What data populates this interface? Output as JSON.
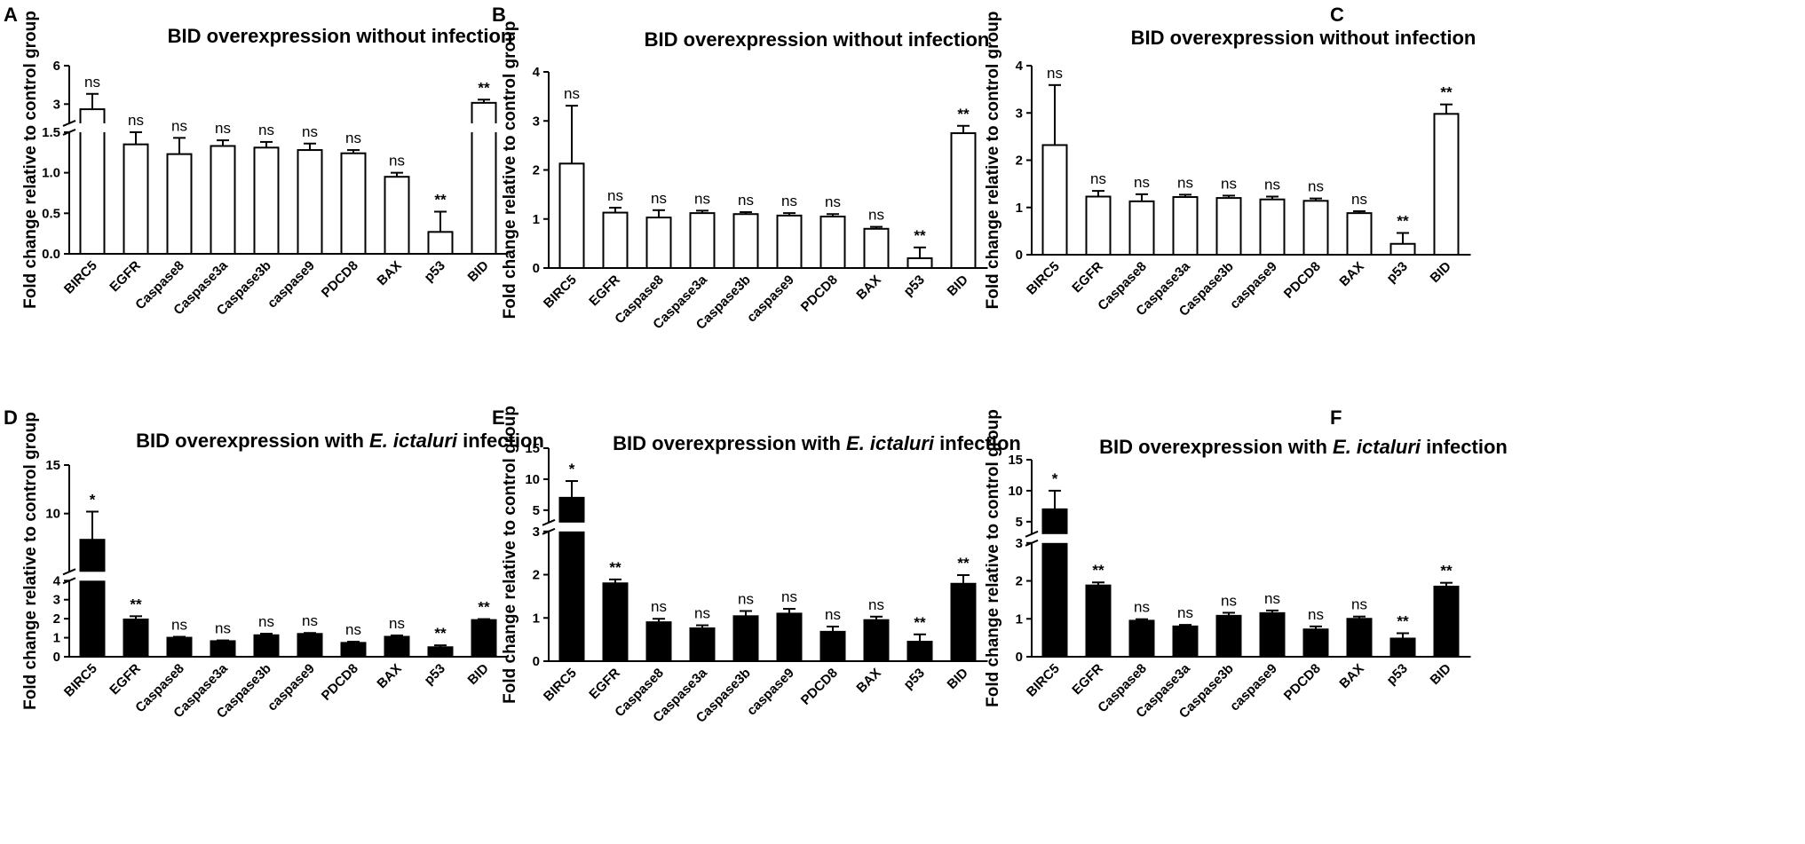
{
  "figure": {
    "label": "BID overexpression qPCR fold-change panels"
  },
  "colors": {
    "axis": "#000000",
    "bar_fill_open": "#ffffff",
    "bar_fill_solid": "#000000",
    "background": "#ffffff"
  },
  "chart_data": [
    {
      "panel": "A",
      "type": "bar",
      "title_main": "BID overexpression without infection",
      "title_italic": "",
      "title_tail": "",
      "ylabel": "Fold change relative to control group",
      "categories": [
        "BIRC5",
        "EGFR",
        "Caspase8",
        "Caspase3a",
        "Caspase3b",
        "caspase9",
        "PDCD8",
        "BAX",
        "p53",
        "BID"
      ],
      "values": [
        2.6,
        1.35,
        1.23,
        1.33,
        1.31,
        1.28,
        1.24,
        0.95,
        0.27,
        3.1
      ],
      "errors": [
        1.2,
        0.15,
        0.2,
        0.07,
        0.07,
        0.08,
        0.04,
        0.05,
        0.25,
        0.25
      ],
      "significance": [
        "ns",
        "ns",
        "ns",
        "ns",
        "ns",
        "ns",
        "ns",
        "ns",
        "**",
        "**"
      ],
      "bar_style": "open",
      "y_break": true,
      "ylim_lower": [
        0,
        1.5
      ],
      "ylim_upper": [
        1.5,
        6
      ],
      "yticks_lower": [
        "0.0",
        "0.5",
        "1.0",
        "1.5"
      ],
      "yticks_lower_values": [
        0,
        0.5,
        1.0,
        1.5
      ],
      "yticks_upper": [
        "3",
        "6"
      ],
      "yticks_upper_values": [
        3,
        6
      ]
    },
    {
      "panel": "B",
      "type": "bar",
      "title_main": "BID overexpression without infection",
      "title_italic": "",
      "title_tail": "",
      "ylabel": "Fold change relative to control group",
      "categories": [
        "BIRC5",
        "EGFR",
        "Caspase8",
        "Caspase3a",
        "Caspase3b",
        "caspase9",
        "PDCD8",
        "BAX",
        "p53",
        "BID"
      ],
      "values": [
        2.13,
        1.13,
        1.03,
        1.12,
        1.1,
        1.07,
        1.05,
        0.8,
        0.2,
        2.75
      ],
      "errors": [
        1.18,
        0.1,
        0.15,
        0.05,
        0.04,
        0.05,
        0.05,
        0.04,
        0.22,
        0.15
      ],
      "significance": [
        "ns",
        "ns",
        "ns",
        "ns",
        "ns",
        "ns",
        "ns",
        "ns",
        "**",
        "**"
      ],
      "bar_style": "open",
      "y_break": false,
      "ylim": [
        0,
        4
      ],
      "yticks": [
        "0",
        "1",
        "2",
        "3",
        "4"
      ],
      "yticks_values": [
        0,
        1,
        2,
        3,
        4
      ]
    },
    {
      "panel": "C",
      "type": "bar",
      "title_main": "BID overexpression without infection",
      "title_italic": "",
      "title_tail": "",
      "ylabel": "Fold change relative to control group",
      "categories": [
        "BIRC5",
        "EGFR",
        "Caspase8",
        "Caspase3a",
        "Caspase3b",
        "caspase9",
        "PDCD8",
        "BAX",
        "p53",
        "BID"
      ],
      "values": [
        2.32,
        1.23,
        1.13,
        1.22,
        1.2,
        1.17,
        1.14,
        0.88,
        0.23,
        2.98
      ],
      "errors": [
        1.27,
        0.12,
        0.15,
        0.05,
        0.05,
        0.06,
        0.05,
        0.04,
        0.23,
        0.2
      ],
      "significance": [
        "ns",
        "ns",
        "ns",
        "ns",
        "ns",
        "ns",
        "ns",
        "ns",
        "**",
        "**"
      ],
      "bar_style": "open",
      "y_break": false,
      "ylim": [
        0,
        4
      ],
      "yticks": [
        "0",
        "1",
        "2",
        "3",
        "4"
      ],
      "yticks_values": [
        0,
        1,
        2,
        3,
        4
      ]
    },
    {
      "panel": "D",
      "type": "bar",
      "title_main": "BID overexpression with ",
      "title_italic": "E. ictaluri",
      "title_tail": " infection",
      "ylabel": "Fold change relative to control group",
      "categories": [
        "BIRC5",
        "EGFR",
        "Caspase8",
        "Caspase3a",
        "Caspase3b",
        "caspase9",
        "PDCD8",
        "BAX",
        "p53",
        "BID"
      ],
      "values": [
        7.3,
        1.96,
        1.0,
        0.82,
        1.13,
        1.2,
        0.73,
        1.05,
        0.5,
        1.93
      ],
      "errors": [
        2.9,
        0.17,
        0.05,
        0.04,
        0.08,
        0.05,
        0.06,
        0.07,
        0.1,
        0.05
      ],
      "significance": [
        "*",
        "**",
        "ns",
        "ns",
        "ns",
        "ns",
        "ns",
        "ns",
        "**",
        "**"
      ],
      "bar_style": "solid",
      "y_break": true,
      "ylim_lower": [
        0,
        4
      ],
      "ylim_upper": [
        4,
        15
      ],
      "yticks_lower": [
        "0",
        "1",
        "2",
        "3",
        "4"
      ],
      "yticks_lower_values": [
        0,
        1,
        2,
        3,
        4
      ],
      "yticks_upper": [
        "10",
        "15"
      ],
      "yticks_upper_values": [
        10,
        15
      ]
    },
    {
      "panel": "E",
      "type": "bar",
      "title_main": "BID overexpression with ",
      "title_italic": "E. ictaluri",
      "title_tail": " infection",
      "ylabel": "Fold change relative to control group",
      "categories": [
        "BIRC5",
        "EGFR",
        "Caspase8",
        "Caspase3a",
        "Caspase3b",
        "caspase9",
        "PDCD8",
        "BAX",
        "p53",
        "BID"
      ],
      "values": [
        7.0,
        1.8,
        0.9,
        0.76,
        1.04,
        1.1,
        0.68,
        0.95,
        0.45,
        1.79
      ],
      "errors": [
        2.7,
        0.09,
        0.08,
        0.07,
        0.12,
        0.11,
        0.12,
        0.08,
        0.17,
        0.2
      ],
      "significance": [
        "*",
        "**",
        "ns",
        "ns",
        "ns",
        "ns",
        "ns",
        "ns",
        "**",
        "**"
      ],
      "bar_style": "solid",
      "y_break": true,
      "ylim_lower": [
        0,
        3
      ],
      "ylim_upper": [
        3,
        15
      ],
      "yticks_lower": [
        "0",
        "1",
        "2",
        "3"
      ],
      "yticks_lower_values": [
        0,
        1,
        2,
        3
      ],
      "yticks_upper": [
        "5",
        "10",
        "15"
      ],
      "yticks_upper_values": [
        5,
        10,
        15
      ]
    },
    {
      "panel": "F",
      "type": "bar",
      "title_main": "BID overexpression with ",
      "title_italic": "E. ictaluri",
      "title_tail": " infection",
      "ylabel": "Fold change relative to control group",
      "categories": [
        "BIRC5",
        "EGFR",
        "Caspase8",
        "Caspase3a",
        "Caspase3b",
        "caspase9",
        "PDCD8",
        "BAX",
        "p53",
        "BID"
      ],
      "values": [
        7.0,
        1.88,
        0.95,
        0.8,
        1.08,
        1.15,
        0.72,
        1.0,
        0.48,
        1.85
      ],
      "errors": [
        3.0,
        0.08,
        0.04,
        0.04,
        0.08,
        0.07,
        0.08,
        0.06,
        0.14,
        0.1
      ],
      "significance": [
        "*",
        "**",
        "ns",
        "ns",
        "ns",
        "ns",
        "ns",
        "ns",
        "**",
        "**"
      ],
      "bar_style": "solid",
      "y_break": true,
      "ylim_lower": [
        0,
        3
      ],
      "ylim_upper": [
        3,
        15
      ],
      "yticks_lower": [
        "0",
        "1",
        "2",
        "3"
      ],
      "yticks_lower_values": [
        0,
        1,
        2,
        3
      ],
      "yticks_upper": [
        "5",
        "10",
        "15"
      ],
      "yticks_upper_values": [
        5,
        10,
        15
      ]
    }
  ]
}
